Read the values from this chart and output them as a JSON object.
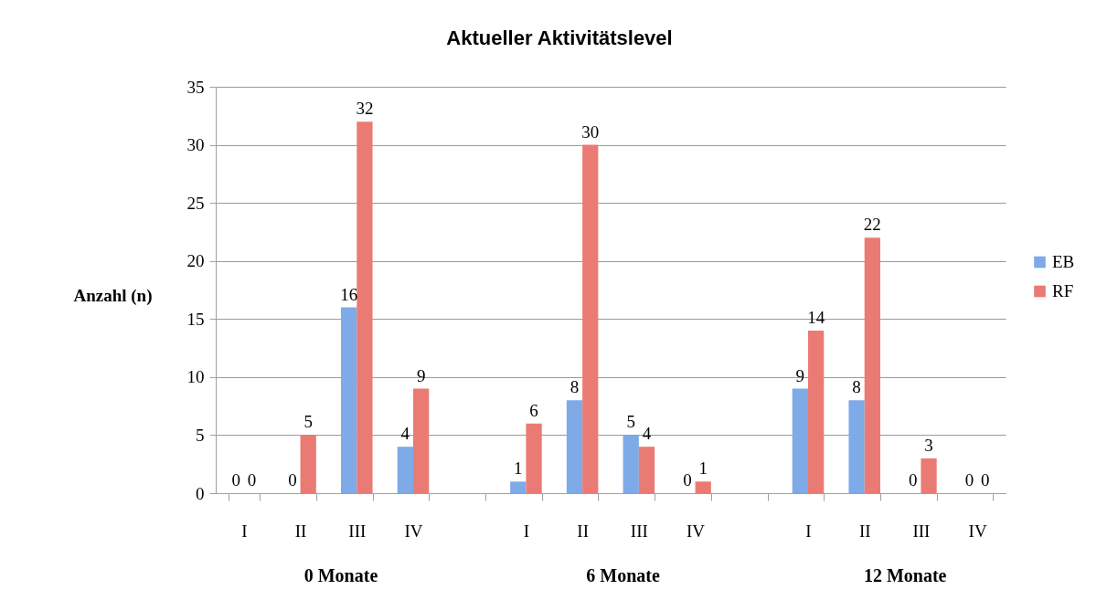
{
  "chart_data": {
    "type": "bar",
    "title": "Aktueller Aktivitätslevel",
    "ylabel": "Anzahl (n)",
    "categories": [
      "I",
      "II",
      "III",
      "IV",
      null,
      "I",
      "II",
      "III",
      "IV",
      null,
      "I",
      "II",
      "III",
      "IV"
    ],
    "series": [
      {
        "name": "EB",
        "color": "#7eaae8",
        "values": [
          0,
          0,
          16,
          4,
          null,
          1,
          8,
          5,
          0,
          null,
          9,
          8,
          0,
          0
        ]
      },
      {
        "name": "RF",
        "color": "#ea7b74",
        "values": [
          0,
          5,
          32,
          9,
          null,
          6,
          30,
          4,
          1,
          null,
          14,
          22,
          3,
          0
        ]
      }
    ],
    "ylim": [
      0,
      35
    ],
    "yticks": [
      0,
      5,
      10,
      15,
      20,
      25,
      30,
      35
    ],
    "grid": "y",
    "legend": "right",
    "data_labels": true,
    "annotations": [
      "0 Monate",
      "6 Monate",
      "12 Monate"
    ]
  }
}
